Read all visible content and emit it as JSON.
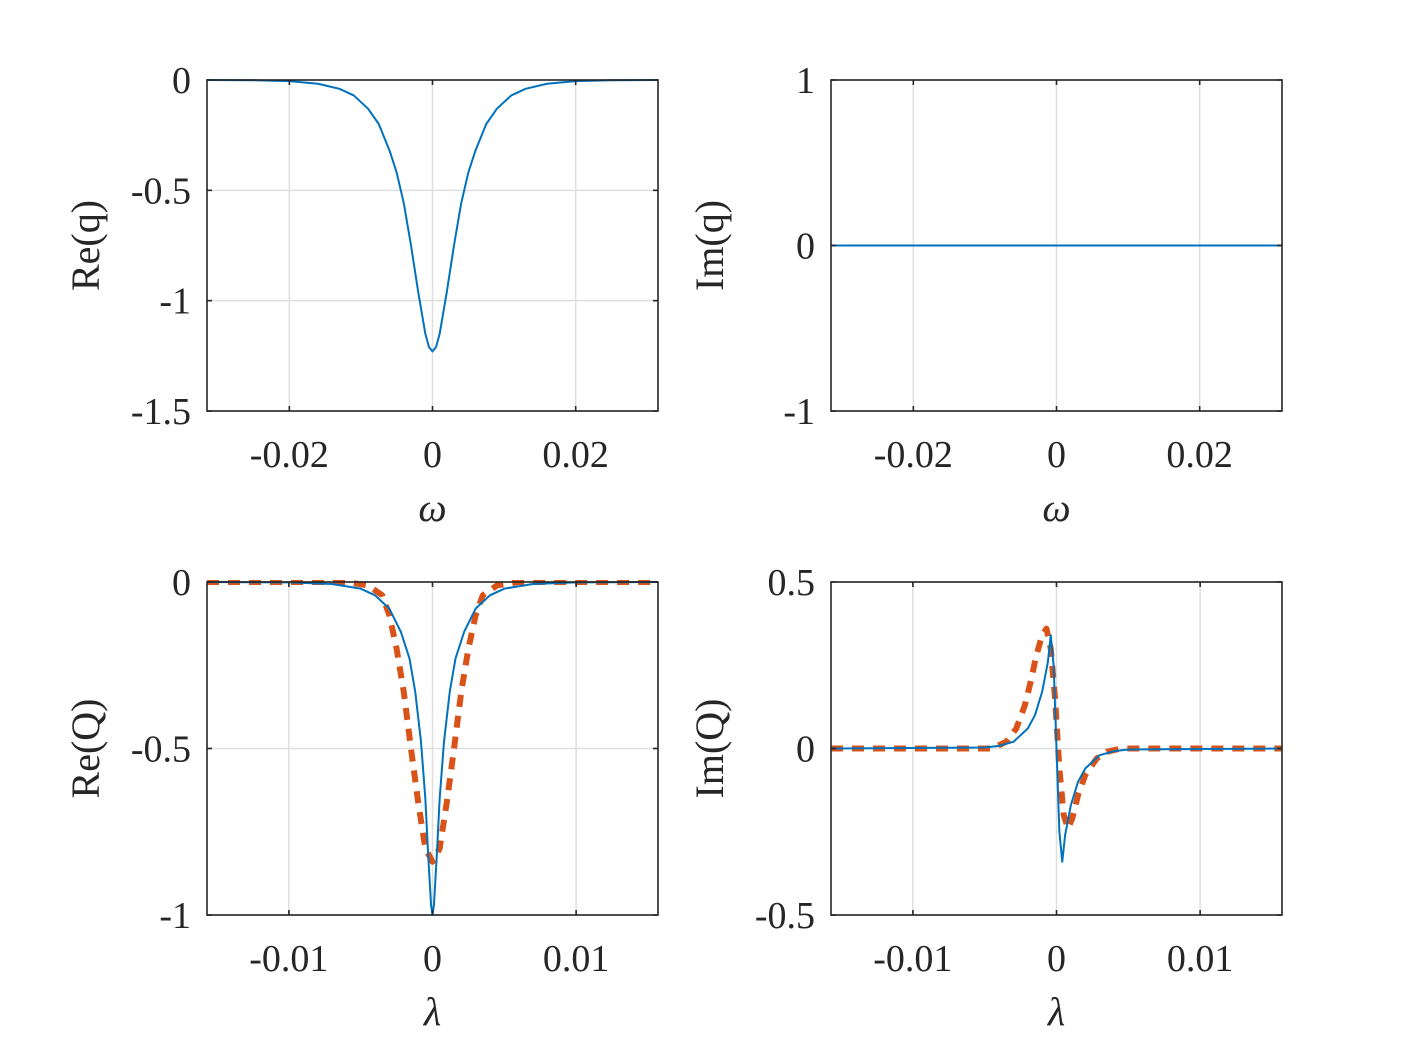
{
  "colors": {
    "series_main": "#0072BD",
    "series_dashed": "#D95319",
    "axis": "#262626",
    "grid": "#dfdfdf",
    "background": "#ffffff"
  },
  "chart_data": [
    {
      "id": "re-q",
      "type": "line",
      "title": "",
      "xlabel": "ω",
      "ylabel": "Re(q)",
      "xlim": [
        -0.0315,
        0.0315
      ],
      "ylim": [
        -1.5,
        0
      ],
      "xticks": [
        -0.02,
        0,
        0.02
      ],
      "xtick_labels": [
        "-0.02",
        "0",
        "0.02"
      ],
      "yticks": [
        -1.5,
        -1,
        -0.5,
        0
      ],
      "ytick_labels": [
        "-1.5",
        "-1",
        "-0.5",
        "0"
      ],
      "grid": true,
      "series": [
        {
          "name": "solid",
          "style": "solid",
          "x": [
            -0.0315,
            -0.025,
            -0.02,
            -0.016,
            -0.013,
            -0.011,
            -0.009,
            -0.0075,
            -0.006,
            -0.005,
            -0.004,
            -0.003,
            -0.002,
            -0.001,
            -0.0005,
            0,
            0.0005,
            0.001,
            0.002,
            0.003,
            0.004,
            0.005,
            0.006,
            0.0075,
            0.009,
            0.011,
            0.013,
            0.016,
            0.02,
            0.025,
            0.0315
          ],
          "y": [
            0,
            -0.001,
            -0.005,
            -0.017,
            -0.04,
            -0.07,
            -0.13,
            -0.2,
            -0.32,
            -0.42,
            -0.56,
            -0.75,
            -0.96,
            -1.15,
            -1.21,
            -1.23,
            -1.21,
            -1.15,
            -0.96,
            -0.75,
            -0.56,
            -0.42,
            -0.32,
            -0.2,
            -0.13,
            -0.07,
            -0.04,
            -0.017,
            -0.005,
            -0.001,
            0
          ]
        }
      ]
    },
    {
      "id": "im-q",
      "type": "line",
      "title": "",
      "xlabel": "ω",
      "ylabel": "Im(q)",
      "xlim": [
        -0.0315,
        0.0315
      ],
      "ylim": [
        -1,
        1
      ],
      "xticks": [
        -0.02,
        0,
        0.02
      ],
      "xtick_labels": [
        "-0.02",
        "0",
        "0.02"
      ],
      "yticks": [
        -1,
        0,
        1
      ],
      "ytick_labels": [
        "-1",
        "0",
        "1"
      ],
      "grid": true,
      "series": [
        {
          "name": "solid",
          "style": "solid",
          "x": [
            -0.0315,
            0.0315
          ],
          "y": [
            0,
            0
          ]
        }
      ]
    },
    {
      "id": "re-Q",
      "type": "line",
      "title": "",
      "xlabel": "λ",
      "ylabel": "Re(Q)",
      "xlim": [
        -0.0157,
        0.0157
      ],
      "ylim": [
        -1,
        0
      ],
      "xticks": [
        -0.01,
        0,
        0.01
      ],
      "xtick_labels": [
        "-0.01",
        "0",
        "0.01"
      ],
      "yticks": [
        -1,
        -0.5,
        0
      ],
      "ytick_labels": [
        "-1",
        "-0.5",
        "0"
      ],
      "grid": true,
      "series": [
        {
          "name": "solid",
          "style": "solid",
          "x": [
            -0.0157,
            -0.01,
            -0.007,
            -0.005,
            -0.004,
            -0.003,
            -0.0022,
            -0.0016,
            -0.0012,
            -0.0008,
            -0.0005,
            -0.0003,
            -0.0001,
            0,
            0.0001,
            0.0003,
            0.0005,
            0.0008,
            0.0012,
            0.0016,
            0.0022,
            0.003,
            0.004,
            0.005,
            0.007,
            0.01,
            0.0157
          ],
          "y": [
            0,
            -0.001,
            -0.006,
            -0.02,
            -0.04,
            -0.08,
            -0.15,
            -0.23,
            -0.33,
            -0.48,
            -0.65,
            -0.82,
            -0.97,
            -1.0,
            -0.97,
            -0.82,
            -0.65,
            -0.48,
            -0.33,
            -0.23,
            -0.15,
            -0.08,
            -0.04,
            -0.02,
            -0.006,
            -0.001,
            0
          ]
        },
        {
          "name": "dashed",
          "style": "dashed",
          "x": [
            -0.0157,
            -0.006,
            -0.0045,
            -0.0035,
            -0.003,
            -0.0025,
            -0.002,
            -0.0015,
            -0.001,
            -0.0005,
            0,
            0.0005,
            0.001,
            0.0015,
            0.002,
            0.0025,
            0.003,
            0.0035,
            0.0045,
            0.006,
            0.0157
          ],
          "y": [
            0,
            0,
            -0.01,
            -0.04,
            -0.1,
            -0.2,
            -0.33,
            -0.5,
            -0.66,
            -0.8,
            -0.84,
            -0.8,
            -0.66,
            -0.5,
            -0.33,
            -0.2,
            -0.1,
            -0.04,
            -0.01,
            0,
            0
          ]
        }
      ]
    },
    {
      "id": "im-Q",
      "type": "line",
      "title": "",
      "xlabel": "λ",
      "ylabel": "Im(Q)",
      "xlim": [
        -0.0157,
        0.0157
      ],
      "ylim": [
        -0.5,
        0.5
      ],
      "xticks": [
        -0.01,
        0,
        0.01
      ],
      "xtick_labels": [
        "-0.01",
        "0",
        "0.01"
      ],
      "yticks": [
        -0.5,
        0,
        0.5
      ],
      "ytick_labels": [
        "-0.5",
        "0",
        "0.5"
      ],
      "grid": true,
      "series": [
        {
          "name": "solid",
          "style": "solid",
          "x": [
            -0.0157,
            -0.005,
            -0.004,
            -0.003,
            -0.002,
            -0.0015,
            -0.001,
            -0.0006,
            -0.0004,
            -0.0002,
            0,
            0.0002,
            0.0004,
            0.0006,
            0.001,
            0.0015,
            0.002,
            0.003,
            0.004,
            0.005,
            0.0157
          ],
          "y": [
            0,
            0.003,
            0.008,
            0.02,
            0.06,
            0.1,
            0.17,
            0.26,
            0.34,
            0.25,
            0,
            -0.25,
            -0.34,
            -0.26,
            -0.17,
            -0.1,
            -0.06,
            -0.02,
            -0.008,
            -0.003,
            0
          ]
        },
        {
          "name": "dashed",
          "style": "dashed",
          "x": [
            -0.0157,
            -0.0045,
            -0.0035,
            -0.0028,
            -0.0022,
            -0.0018,
            -0.0014,
            -0.001,
            -0.0007,
            -0.0004,
            -0.0001,
            0.0002,
            0.0005,
            0.0008,
            0.0011,
            0.0015,
            0.002,
            0.0028,
            0.0035,
            0.0045,
            0.0157
          ],
          "y": [
            0,
            0,
            0.02,
            0.06,
            0.13,
            0.2,
            0.28,
            0.34,
            0.36,
            0.3,
            0.15,
            -0.06,
            -0.2,
            -0.24,
            -0.21,
            -0.14,
            -0.08,
            -0.03,
            -0.01,
            0,
            0
          ]
        }
      ]
    }
  ]
}
